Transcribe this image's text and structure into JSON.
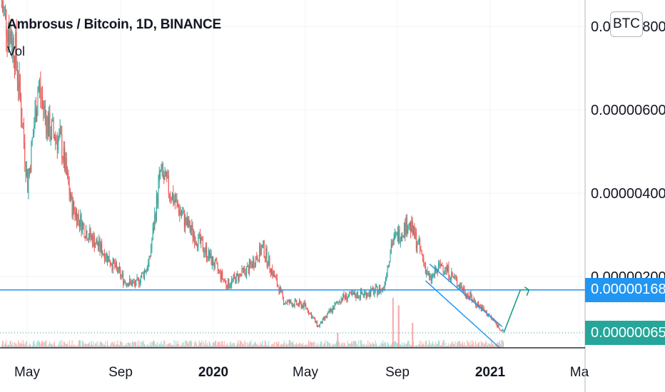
{
  "header": {
    "symbol_line": "Ambrosus / Bitcoin, 1D, BINANCE",
    "volume_label": "Vol",
    "currency_button": "BTC"
  },
  "colors": {
    "up": "#26a69a",
    "down": "#ef5350",
    "drawing_line": "#2196f3",
    "arrow": "#089981",
    "level_tag": "#2196f3",
    "last_price_tag": "#26a69a"
  },
  "price_tags": {
    "level": "0.00000168",
    "last": "0.00000065"
  },
  "chart_data": {
    "type": "candlestick",
    "y_axis_ticks": [
      "0.00000800",
      "0.00000600",
      "0.00000400",
      "0.00000200"
    ],
    "x_axis_ticks": [
      "May",
      "Sep",
      "2020",
      "May",
      "Sep",
      "2021",
      "Ma"
    ],
    "bold_x_ticks": [
      "2020",
      "2021"
    ],
    "ylim": [
      6.5e-07,
      8.5e-06
    ],
    "x_range": [
      "2019-04-01",
      "2021-03-20"
    ],
    "close_path": [
      {
        "date": "2019-04-03",
        "price": 8.5e-06
      },
      {
        "date": "2019-04-20",
        "price": 7.4e-06
      },
      {
        "date": "2019-04-27",
        "price": 6e-06
      },
      {
        "date": "2019-05-05",
        "price": 4.2e-06
      },
      {
        "date": "2019-05-18",
        "price": 6.6e-06
      },
      {
        "date": "2019-05-30",
        "price": 5.6e-06
      },
      {
        "date": "2019-06-15",
        "price": 5.2e-06
      },
      {
        "date": "2019-06-28",
        "price": 3.7e-06
      },
      {
        "date": "2019-07-15",
        "price": 3.1e-06
      },
      {
        "date": "2019-08-10",
        "price": 2.5e-06
      },
      {
        "date": "2019-09-01",
        "price": 1.9e-06
      },
      {
        "date": "2019-09-15",
        "price": 1.8e-06
      },
      {
        "date": "2019-10-01",
        "price": 2.3e-06
      },
      {
        "date": "2019-10-15",
        "price": 4.5e-06
      },
      {
        "date": "2019-10-28",
        "price": 4e-06
      },
      {
        "date": "2019-11-15",
        "price": 3.3e-06
      },
      {
        "date": "2019-12-10",
        "price": 2.6e-06
      },
      {
        "date": "2020-01-05",
        "price": 1.8e-06
      },
      {
        "date": "2020-02-01",
        "price": 2.2e-06
      },
      {
        "date": "2020-02-18",
        "price": 2.7e-06
      },
      {
        "date": "2020-03-15",
        "price": 1.4e-06
      },
      {
        "date": "2020-04-10",
        "price": 1.3e-06
      },
      {
        "date": "2020-04-26",
        "price": 8e-07
      },
      {
        "date": "2020-05-25",
        "price": 1.5e-06
      },
      {
        "date": "2020-06-25",
        "price": 1.6e-06
      },
      {
        "date": "2020-07-15",
        "price": 1.7e-06
      },
      {
        "date": "2020-07-25",
        "price": 2.8e-06
      },
      {
        "date": "2020-08-15",
        "price": 3.3e-06
      },
      {
        "date": "2020-08-28",
        "price": 2.7e-06
      },
      {
        "date": "2020-09-10",
        "price": 1.9e-06
      },
      {
        "date": "2020-09-25",
        "price": 2.3e-06
      },
      {
        "date": "2020-10-25",
        "price": 1.6e-06
      },
      {
        "date": "2020-11-25",
        "price": 1e-06
      },
      {
        "date": "2020-12-10",
        "price": 6.5e-07
      }
    ],
    "volume_spikes": [
      {
        "date": "2020-07-27",
        "relative": 1.0
      },
      {
        "date": "2020-08-03",
        "relative": 0.85
      },
      {
        "date": "2020-08-20",
        "relative": 0.5
      },
      {
        "date": "2020-05-20",
        "relative": 0.3
      }
    ],
    "drawings": {
      "horizontal_level": {
        "price": 1.68e-06
      },
      "last_price_line": {
        "price": 6.5e-07
      },
      "descending_channel": [
        {
          "from": {
            "date": "2020-09-10",
            "price": 2.3e-06
          },
          "to": {
            "date": "2020-12-08",
            "price": 8e-07
          }
        },
        {
          "from": {
            "date": "2020-09-05",
            "price": 1.9e-06
          },
          "to": {
            "date": "2020-12-05",
            "price": 2e-07
          }
        }
      ],
      "projection_arrow": {
        "from": {
          "date": "2020-12-10",
          "price": 6.5e-07
        },
        "to": {
          "date": "2021-01-10",
          "price": 1.68e-06
        }
      }
    }
  }
}
